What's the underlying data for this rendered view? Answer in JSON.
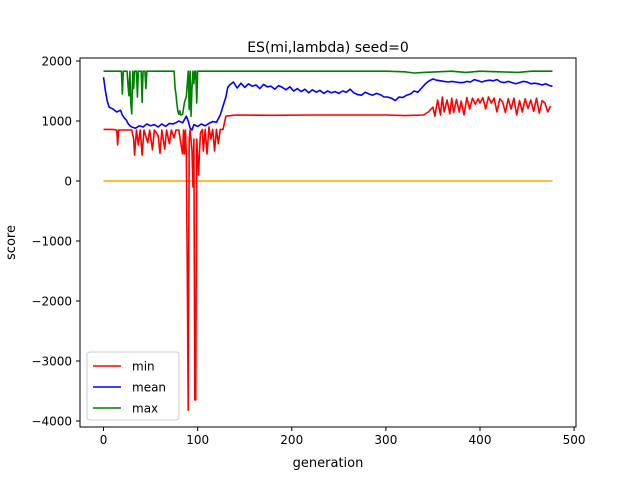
{
  "chart_data": {
    "type": "line",
    "title": "ES(mi,lambda) seed=0",
    "xlabel": "generation",
    "ylabel": "score",
    "xlim": [
      -25,
      502
    ],
    "ylim": [
      -4100,
      2050
    ],
    "grid": false,
    "legend_position": "lower-left",
    "x_ticks": [
      0,
      100,
      200,
      300,
      400,
      500
    ],
    "y_ticks": [
      -4000,
      -3000,
      -2000,
      -1000,
      0,
      1000,
      2000
    ],
    "x_tick_labels": [
      "0",
      "100",
      "200",
      "300",
      "400",
      "500"
    ],
    "y_tick_labels": [
      "−4000",
      "−3000",
      "−2000",
      "−1000",
      "0",
      "1000",
      "2000"
    ],
    "series": [
      {
        "name": "min",
        "color": "#ff0000",
        "points": [
          [
            0,
            860
          ],
          [
            10,
            860
          ],
          [
            14,
            850
          ],
          [
            15,
            600
          ],
          [
            16,
            850
          ],
          [
            30,
            850
          ],
          [
            32,
            700
          ],
          [
            33,
            430
          ],
          [
            35,
            850
          ],
          [
            37,
            600
          ],
          [
            39,
            850
          ],
          [
            41,
            430
          ],
          [
            43,
            850
          ],
          [
            47,
            640
          ],
          [
            49,
            850
          ],
          [
            52,
            520
          ],
          [
            54,
            850
          ],
          [
            58,
            760
          ],
          [
            60,
            460
          ],
          [
            62,
            850
          ],
          [
            65,
            530
          ],
          [
            67,
            850
          ],
          [
            70,
            620
          ],
          [
            72,
            850
          ],
          [
            75,
            720
          ],
          [
            77,
            850
          ],
          [
            80,
            850
          ],
          [
            82,
            640
          ],
          [
            84,
            450
          ],
          [
            85,
            850
          ],
          [
            86,
            450
          ],
          [
            87,
            850
          ],
          [
            88,
            430
          ],
          [
            89,
            -1500
          ],
          [
            90,
            -3820
          ],
          [
            91,
            700
          ],
          [
            92,
            850
          ],
          [
            94,
            500
          ],
          [
            95,
            -100
          ],
          [
            96,
            700
          ],
          [
            97,
            -3650
          ],
          [
            98,
            -3650
          ],
          [
            99,
            700
          ],
          [
            101,
            100
          ],
          [
            102,
            500
          ],
          [
            103,
            800
          ],
          [
            105,
            860
          ],
          [
            106,
            500
          ],
          [
            108,
            860
          ],
          [
            110,
            450
          ],
          [
            112,
            900
          ],
          [
            114,
            700
          ],
          [
            116,
            860
          ],
          [
            118,
            500
          ],
          [
            120,
            860
          ],
          [
            122,
            620
          ],
          [
            124,
            860
          ],
          [
            127,
            860
          ],
          [
            130,
            1080
          ],
          [
            140,
            1100
          ],
          [
            180,
            1095
          ],
          [
            220,
            1100
          ],
          [
            260,
            1100
          ],
          [
            300,
            1100
          ],
          [
            320,
            1090
          ],
          [
            340,
            1100
          ],
          [
            345,
            1150
          ],
          [
            350,
            1230
          ],
          [
            352,
            1080
          ],
          [
            355,
            1350
          ],
          [
            358,
            1100
          ],
          [
            360,
            1400
          ],
          [
            362,
            1150
          ],
          [
            365,
            1350
          ],
          [
            368,
            1120
          ],
          [
            370,
            1380
          ],
          [
            372,
            1140
          ],
          [
            375,
            1360
          ],
          [
            378,
            1150
          ],
          [
            380,
            1330
          ],
          [
            383,
            1100
          ],
          [
            386,
            1390
          ],
          [
            389,
            1200
          ],
          [
            392,
            1380
          ],
          [
            395,
            1280
          ],
          [
            398,
            1370
          ],
          [
            400,
            1300
          ],
          [
            403,
            1390
          ],
          [
            406,
            1200
          ],
          [
            409,
            1400
          ],
          [
            412,
            1300
          ],
          [
            415,
            1380
          ],
          [
            418,
            1150
          ],
          [
            421,
            1370
          ],
          [
            424,
            1320
          ],
          [
            427,
            1140
          ],
          [
            430,
            1370
          ],
          [
            433,
            1200
          ],
          [
            436,
            1380
          ],
          [
            439,
            1100
          ],
          [
            442,
            1340
          ],
          [
            445,
            1150
          ],
          [
            448,
            1370
          ],
          [
            451,
            1210
          ],
          [
            454,
            1350
          ],
          [
            457,
            1160
          ],
          [
            460,
            1380
          ],
          [
            463,
            1130
          ],
          [
            466,
            1340
          ],
          [
            469,
            1300
          ],
          [
            472,
            1150
          ],
          [
            475,
            1250
          ]
        ]
      },
      {
        "name": "mean",
        "color": "#0000ff",
        "points": [
          [
            0,
            1730
          ],
          [
            2,
            1500
          ],
          [
            4,
            1330
          ],
          [
            6,
            1230
          ],
          [
            10,
            1200
          ],
          [
            14,
            1150
          ],
          [
            18,
            1180
          ],
          [
            20,
            1100
          ],
          [
            22,
            1050
          ],
          [
            24,
            1020
          ],
          [
            26,
            960
          ],
          [
            28,
            920
          ],
          [
            30,
            900
          ],
          [
            34,
            880
          ],
          [
            38,
            920
          ],
          [
            42,
            900
          ],
          [
            46,
            950
          ],
          [
            50,
            920
          ],
          [
            54,
            940
          ],
          [
            58,
            900
          ],
          [
            62,
            950
          ],
          [
            66,
            910
          ],
          [
            70,
            960
          ],
          [
            74,
            950
          ],
          [
            78,
            980
          ],
          [
            80,
            1000
          ],
          [
            84,
            970
          ],
          [
            88,
            1080
          ],
          [
            90,
            1000
          ],
          [
            92,
            880
          ],
          [
            94,
            850
          ],
          [
            96,
            940
          ],
          [
            100,
            910
          ],
          [
            104,
            950
          ],
          [
            108,
            920
          ],
          [
            112,
            960
          ],
          [
            116,
            990
          ],
          [
            120,
            980
          ],
          [
            124,
            1100
          ],
          [
            126,
            1200
          ],
          [
            128,
            1300
          ],
          [
            130,
            1400
          ],
          [
            132,
            1560
          ],
          [
            134,
            1600
          ],
          [
            138,
            1650
          ],
          [
            142,
            1550
          ],
          [
            146,
            1630
          ],
          [
            150,
            1560
          ],
          [
            154,
            1620
          ],
          [
            158,
            1580
          ],
          [
            162,
            1600
          ],
          [
            166,
            1540
          ],
          [
            170,
            1610
          ],
          [
            174,
            1570
          ],
          [
            178,
            1580
          ],
          [
            182,
            1530
          ],
          [
            186,
            1590
          ],
          [
            190,
            1560
          ],
          [
            194,
            1520
          ],
          [
            198,
            1570
          ],
          [
            202,
            1500
          ],
          [
            206,
            1540
          ],
          [
            210,
            1490
          ],
          [
            214,
            1530
          ],
          [
            218,
            1470
          ],
          [
            222,
            1520
          ],
          [
            226,
            1480
          ],
          [
            230,
            1510
          ],
          [
            234,
            1460
          ],
          [
            238,
            1500
          ],
          [
            242,
            1470
          ],
          [
            246,
            1490
          ],
          [
            250,
            1460
          ],
          [
            254,
            1500
          ],
          [
            258,
            1480
          ],
          [
            262,
            1530
          ],
          [
            266,
            1470
          ],
          [
            270,
            1440
          ],
          [
            274,
            1430
          ],
          [
            278,
            1480
          ],
          [
            282,
            1450
          ],
          [
            286,
            1430
          ],
          [
            290,
            1460
          ],
          [
            294,
            1440
          ],
          [
            298,
            1400
          ],
          [
            302,
            1400
          ],
          [
            306,
            1380
          ],
          [
            310,
            1340
          ],
          [
            314,
            1400
          ],
          [
            318,
            1390
          ],
          [
            322,
            1430
          ],
          [
            326,
            1450
          ],
          [
            330,
            1500
          ],
          [
            334,
            1480
          ],
          [
            338,
            1550
          ],
          [
            342,
            1620
          ],
          [
            346,
            1670
          ],
          [
            350,
            1700
          ],
          [
            354,
            1680
          ],
          [
            358,
            1670
          ],
          [
            362,
            1660
          ],
          [
            366,
            1650
          ],
          [
            370,
            1660
          ],
          [
            374,
            1650
          ],
          [
            378,
            1640
          ],
          [
            382,
            1640
          ],
          [
            386,
            1660
          ],
          [
            390,
            1650
          ],
          [
            394,
            1690
          ],
          [
            398,
            1670
          ],
          [
            402,
            1650
          ],
          [
            406,
            1670
          ],
          [
            410,
            1680
          ],
          [
            414,
            1670
          ],
          [
            418,
            1690
          ],
          [
            422,
            1650
          ],
          [
            426,
            1640
          ],
          [
            430,
            1660
          ],
          [
            434,
            1640
          ],
          [
            438,
            1620
          ],
          [
            442,
            1640
          ],
          [
            446,
            1660
          ],
          [
            450,
            1650
          ],
          [
            454,
            1620
          ],
          [
            458,
            1630
          ],
          [
            462,
            1620
          ],
          [
            466,
            1600
          ],
          [
            470,
            1620
          ],
          [
            474,
            1590
          ],
          [
            477,
            1580
          ]
        ]
      },
      {
        "name": "max",
        "color": "#008000",
        "points": [
          [
            0,
            1830
          ],
          [
            19,
            1830
          ],
          [
            20,
            1450
          ],
          [
            21,
            1830
          ],
          [
            25,
            1830
          ],
          [
            26,
            1600
          ],
          [
            27,
            1420
          ],
          [
            28,
            1830
          ],
          [
            29,
            1300
          ],
          [
            30,
            1120
          ],
          [
            31,
            1830
          ],
          [
            32,
            1540
          ],
          [
            33,
            1830
          ],
          [
            35,
            1830
          ],
          [
            36,
            1400
          ],
          [
            37,
            1830
          ],
          [
            40,
            1830
          ],
          [
            41,
            1310
          ],
          [
            42,
            1830
          ],
          [
            44,
            1830
          ],
          [
            45,
            1540
          ],
          [
            46,
            1830
          ],
          [
            75,
            1830
          ],
          [
            76,
            1550
          ],
          [
            77,
            1440
          ],
          [
            78,
            1280
          ],
          [
            79,
            1160
          ],
          [
            80,
            1110
          ],
          [
            81,
            1170
          ],
          [
            82,
            1100
          ],
          [
            84,
            1110
          ],
          [
            86,
            1310
          ],
          [
            88,
            1410
          ],
          [
            90,
            1830
          ],
          [
            91,
            1190
          ],
          [
            92,
            1830
          ],
          [
            93,
            1080
          ],
          [
            94,
            1560
          ],
          [
            95,
            1830
          ],
          [
            96,
            1620
          ],
          [
            97,
            1830
          ],
          [
            98,
            1830
          ],
          [
            99,
            1300
          ],
          [
            100,
            1830
          ],
          [
            300,
            1830
          ],
          [
            320,
            1820
          ],
          [
            330,
            1800
          ],
          [
            340,
            1810
          ],
          [
            355,
            1820
          ],
          [
            370,
            1830
          ],
          [
            385,
            1810
          ],
          [
            400,
            1830
          ],
          [
            420,
            1820
          ],
          [
            440,
            1810
          ],
          [
            455,
            1830
          ],
          [
            477,
            1830
          ]
        ]
      },
      {
        "color": "#ffa500",
        "points": [
          [
            0,
            0
          ],
          [
            477,
            0
          ]
        ]
      }
    ]
  }
}
